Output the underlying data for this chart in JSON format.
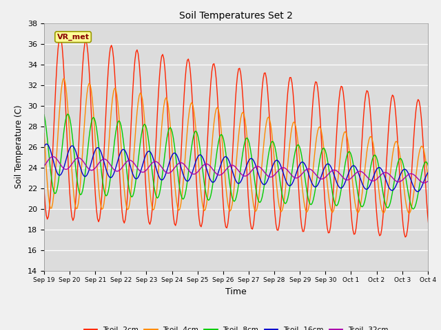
{
  "title": "Soil Temperatures Set 2",
  "xlabel": "Time",
  "ylabel": "Soil Temperature (C)",
  "ylim": [
    14,
    38
  ],
  "yticks": [
    14,
    16,
    18,
    20,
    22,
    24,
    26,
    28,
    30,
    32,
    34,
    36,
    38
  ],
  "plot_bg": "#dcdcdc",
  "fig_bg": "#f0f0f0",
  "colors": {
    "Tsoil -2cm": "#ff2200",
    "Tsoil -4cm": "#ff8800",
    "Tsoil -8cm": "#00cc00",
    "Tsoil -16cm": "#0000cc",
    "Tsoil -32cm": "#aa00aa"
  },
  "legend_labels": [
    "Tsoil -2cm",
    "Tsoil -4cm",
    "Tsoil -8cm",
    "Tsoil -16cm",
    "Tsoil -32cm"
  ],
  "xtick_labels": [
    "Sep 19",
    "Sep 20",
    "Sep 21",
    "Sep 22",
    "Sep 23",
    "Sep 24",
    "Sep 25",
    "Sep 26",
    "Sep 27",
    "Sep 28",
    "Sep 29",
    "Sep 30",
    "Oct 1",
    "Oct 2",
    "Oct 3",
    "Oct 4"
  ],
  "annotation_text": "VR_met"
}
